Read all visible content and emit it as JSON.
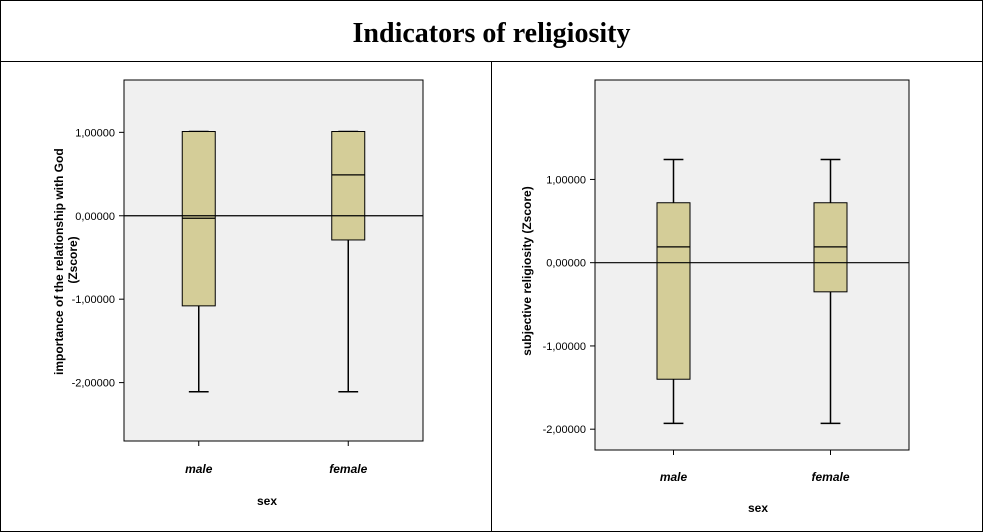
{
  "title": "Indicators of religiosity",
  "colors": {
    "plot_bg": "#f0f0f0",
    "box_fill": "#d4cd98",
    "line": "#000000"
  },
  "chart_data": [
    {
      "type": "boxplot",
      "ylabel": [
        "importance of the relationship with God",
        "(Zscore)"
      ],
      "xlabel": "sex",
      "categories": [
        "male",
        "female"
      ],
      "ylim": [
        -2.7,
        1.0
      ],
      "yticks": [
        1.0,
        0.0,
        -1.0,
        -2.0
      ],
      "ytick_labels": [
        "1,00000",
        "0,00000",
        "-1,00000",
        "-2,00000"
      ],
      "reference_line": 0,
      "series": [
        {
          "category": "male",
          "min": -2.11,
          "q1": -1.08,
          "median": -0.03,
          "q3": 1.01,
          "max": 1.01
        },
        {
          "category": "female",
          "min": -2.11,
          "q1": -0.29,
          "median": 0.49,
          "q3": 1.01,
          "max": 1.01
        }
      ]
    },
    {
      "type": "boxplot",
      "ylabel": [
        "subjective religiosity (Zscore)"
      ],
      "xlabel": "sex",
      "categories": [
        "male",
        "female"
      ],
      "ylim": [
        -2.25,
        1.55
      ],
      "yticks": [
        1.0,
        0.0,
        -1.0,
        -2.0
      ],
      "ytick_labels": [
        "1,00000",
        "0,00000",
        "-1,00000",
        "-2,00000"
      ],
      "reference_line": 0,
      "series": [
        {
          "category": "male",
          "min": -1.93,
          "q1": -1.4,
          "median": 0.19,
          "q3": 0.72,
          "max": 1.24
        },
        {
          "category": "female",
          "min": -1.93,
          "q1": -0.35,
          "median": 0.19,
          "q3": 0.72,
          "max": 1.24
        }
      ]
    }
  ]
}
